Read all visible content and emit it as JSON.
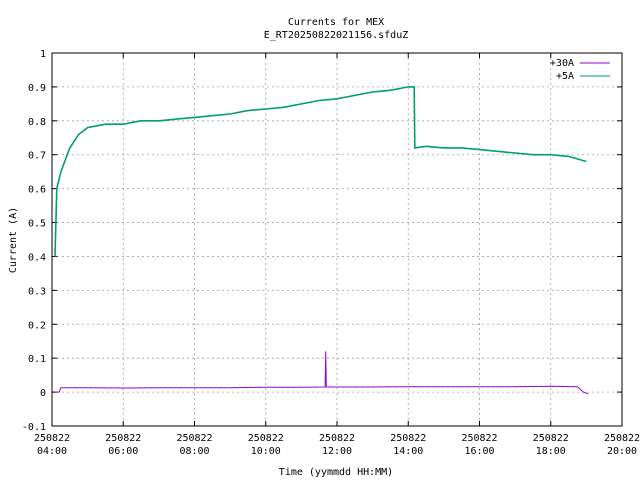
{
  "chart_data": {
    "type": "line",
    "title": "Currents for MEX",
    "subtitle": "E_RT20250822021156.sfduZ",
    "xlabel": "Time (yymmdd HH:MM)",
    "ylabel": "Current (A)",
    "xlim": [
      "2025-08-22 04:00",
      "2025-08-22 20:00"
    ],
    "ylim": [
      -0.1,
      1.0
    ],
    "grid": true,
    "legend_position": "top-right",
    "x_ticks": [
      {
        "date": "250822",
        "time": "04:00"
      },
      {
        "date": "250822",
        "time": "06:00"
      },
      {
        "date": "250822",
        "time": "08:00"
      },
      {
        "date": "250822",
        "time": "10:00"
      },
      {
        "date": "250822",
        "time": "12:00"
      },
      {
        "date": "250822",
        "time": "14:00"
      },
      {
        "date": "250822",
        "time": "16:00"
      },
      {
        "date": "250822",
        "time": "18:00"
      },
      {
        "date": "250822",
        "time": "20:00"
      }
    ],
    "y_ticks": [
      "-0.1",
      "0",
      "0.1",
      "0.2",
      "0.3",
      "0.4",
      "0.5",
      "0.6",
      "0.7",
      "0.8",
      "0.9",
      "1"
    ],
    "series": [
      {
        "name": "+30A",
        "color": "#9400d3",
        "points": [
          [
            "04:05",
            0.0
          ],
          [
            "04:12",
            0.0
          ],
          [
            "04:15",
            0.013
          ],
          [
            "05:00",
            0.013
          ],
          [
            "06:00",
            0.012
          ],
          [
            "07:00",
            0.013
          ],
          [
            "08:00",
            0.013
          ],
          [
            "09:00",
            0.013
          ],
          [
            "10:00",
            0.014
          ],
          [
            "11:00",
            0.014
          ],
          [
            "11:40",
            0.015
          ],
          [
            "11:41",
            0.12
          ],
          [
            "11:42",
            0.015
          ],
          [
            "12:00",
            0.015
          ],
          [
            "13:00",
            0.015
          ],
          [
            "14:00",
            0.016
          ],
          [
            "15:00",
            0.016
          ],
          [
            "16:00",
            0.016
          ],
          [
            "17:00",
            0.016
          ],
          [
            "18:00",
            0.017
          ],
          [
            "18:45",
            0.016
          ],
          [
            "18:55",
            0.0
          ],
          [
            "19:03",
            -0.005
          ]
        ]
      },
      {
        "name": "+5A",
        "color": "#009e73",
        "points": [
          [
            "04:05",
            0.4
          ],
          [
            "04:08",
            0.6
          ],
          [
            "04:15",
            0.65
          ],
          [
            "04:30",
            0.72
          ],
          [
            "04:45",
            0.76
          ],
          [
            "05:00",
            0.78
          ],
          [
            "05:30",
            0.79
          ],
          [
            "06:00",
            0.79
          ],
          [
            "06:30",
            0.8
          ],
          [
            "07:00",
            0.8
          ],
          [
            "07:30",
            0.805
          ],
          [
            "08:00",
            0.81
          ],
          [
            "08:30",
            0.815
          ],
          [
            "09:00",
            0.82
          ],
          [
            "09:30",
            0.83
          ],
          [
            "10:00",
            0.835
          ],
          [
            "10:30",
            0.84
          ],
          [
            "11:00",
            0.85
          ],
          [
            "11:30",
            0.86
          ],
          [
            "12:00",
            0.865
          ],
          [
            "12:30",
            0.875
          ],
          [
            "13:00",
            0.885
          ],
          [
            "13:30",
            0.89
          ],
          [
            "14:00",
            0.9
          ],
          [
            "14:10",
            0.9
          ],
          [
            "14:11",
            0.72
          ],
          [
            "14:30",
            0.725
          ],
          [
            "15:00",
            0.72
          ],
          [
            "15:30",
            0.72
          ],
          [
            "16:00",
            0.715
          ],
          [
            "16:30",
            0.71
          ],
          [
            "17:00",
            0.705
          ],
          [
            "17:30",
            0.7
          ],
          [
            "18:00",
            0.7
          ],
          [
            "18:30",
            0.695
          ],
          [
            "19:00",
            0.68
          ]
        ]
      }
    ]
  }
}
